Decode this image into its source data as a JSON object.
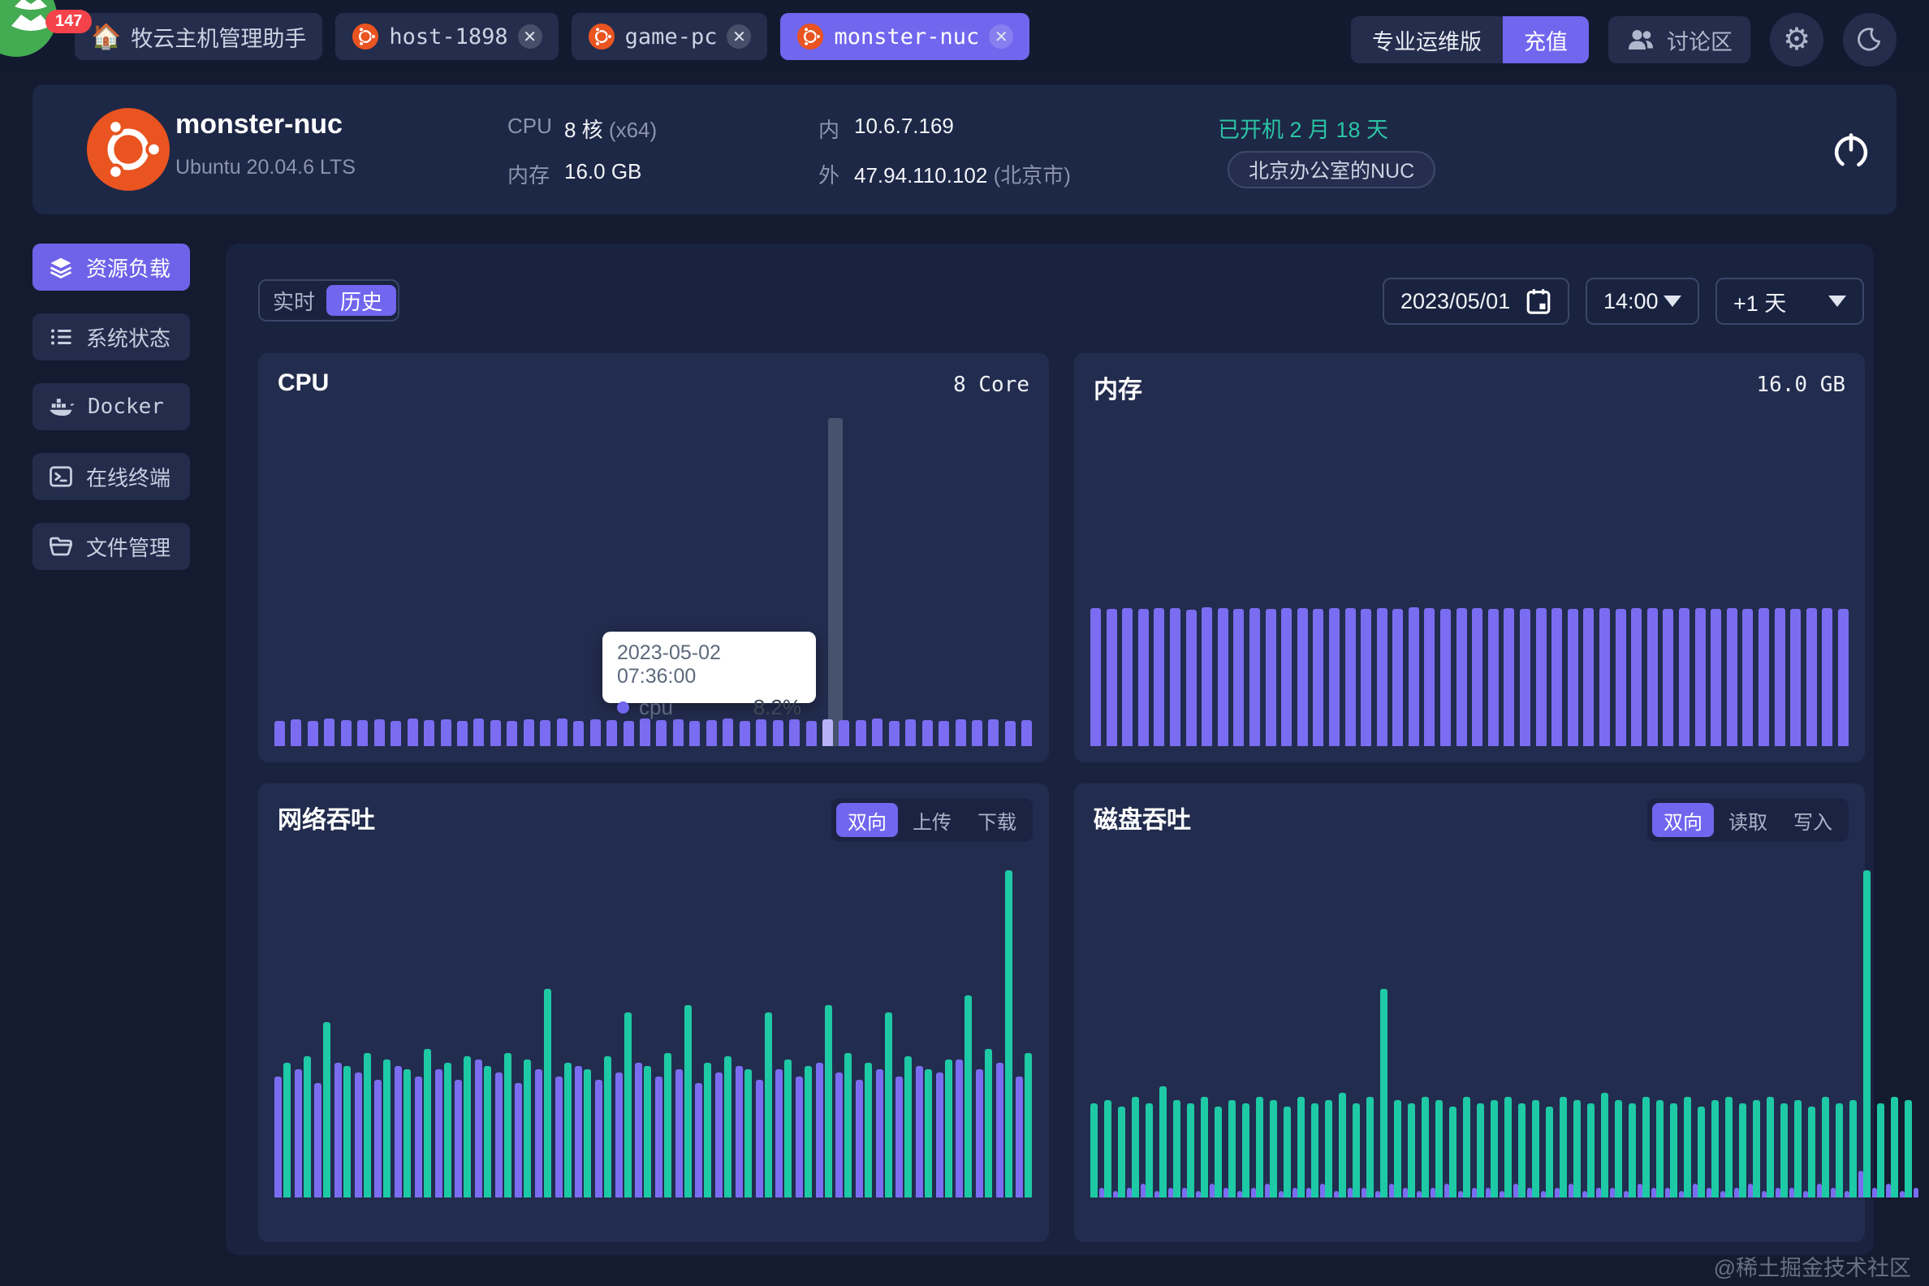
{
  "topbar": {
    "logo_badge": "147",
    "tabs": [
      {
        "label": "牧云主机管理助手",
        "icon": "home",
        "active": false,
        "closable": false
      },
      {
        "label": "host-1898",
        "icon": "ubuntu",
        "active": false,
        "closable": true
      },
      {
        "label": "game-pc",
        "icon": "ubuntu",
        "active": false,
        "closable": true
      },
      {
        "label": "monster-nuc",
        "icon": "ubuntu",
        "active": true,
        "closable": true
      }
    ],
    "pro_label": "专业运维版",
    "recharge_label": "充值",
    "forum_label": "讨论区"
  },
  "host": {
    "name": "monster-nuc",
    "os": "Ubuntu 20.04.6 LTS",
    "cpu_label": "CPU",
    "cpu_value": "8 核",
    "cpu_arch": "(x64)",
    "mem_label": "内存",
    "mem_value": "16.0 GB",
    "lan_label": "内",
    "lan_ip": "10.6.7.169",
    "wan_label": "外",
    "wan_ip": "47.94.110.102",
    "wan_loc": "(北京市)",
    "uptime": "已开机 2 月 18 天",
    "note": "北京办公室的NUC"
  },
  "sidebar": {
    "items": [
      {
        "label": "资源负载",
        "icon": "layers-icon",
        "active": true
      },
      {
        "label": "系统状态",
        "icon": "list-icon",
        "active": false
      },
      {
        "label": "Docker",
        "icon": "docker-icon",
        "active": false
      },
      {
        "label": "在线终端",
        "icon": "terminal-icon",
        "active": false
      },
      {
        "label": "文件管理",
        "icon": "folder-icon",
        "active": false
      }
    ]
  },
  "toolbar": {
    "mode_realtime": "实时",
    "mode_history": "历史",
    "date": "2023/05/01",
    "time": "14:00",
    "span": "+1 天"
  },
  "watermark": "@稀土掘金技术社区",
  "colors": {
    "accent_purple": "#7166ee",
    "bar_purple": "#7b6df1",
    "bar_green": "#1ec9a6",
    "uptime_teal": "#2bc5a4",
    "hover_bar": "#b9b1f7",
    "hover_band": "#47526f"
  },
  "chart_data": [
    {
      "id": "cpu",
      "type": "bar",
      "title": "CPU",
      "unit_label": "8 Core",
      "ylim": [
        0,
        100
      ],
      "bar_color": "#7b6df1",
      "hover_index": 33,
      "tooltip": {
        "timestamp": "2023-05-02 07:36:00",
        "series_label": "cpu",
        "value_label": "8.2%"
      },
      "values": [
        7.8,
        8.1,
        7.6,
        8.3,
        7.9,
        8.0,
        8.2,
        7.7,
        8.4,
        7.9,
        8.1,
        7.8,
        8.3,
        8.0,
        7.6,
        8.2,
        7.9,
        8.4,
        7.8,
        8.1,
        8.0,
        7.7,
        8.3,
        7.9,
        8.2,
        7.8,
        8.0,
        8.3,
        7.7,
        8.1,
        7.9,
        8.2,
        7.8,
        8.2,
        8.0,
        7.9,
        8.3,
        7.8,
        8.1,
        8.0,
        7.7,
        8.2,
        7.9,
        8.1,
        7.8,
        8.0
      ]
    },
    {
      "id": "memory",
      "type": "bar",
      "title": "内存",
      "unit_label": "16.0 GB",
      "ylim": [
        0,
        100
      ],
      "bar_color": "#7b6df1",
      "values": [
        42,
        41.8,
        42.2,
        41.9,
        42.1,
        42,
        41.7,
        42.3,
        42,
        41.9,
        42.2,
        41.8,
        42,
        42.1,
        41.9,
        42.2,
        42,
        41.8,
        42.1,
        41.9,
        42.3,
        42,
        41.8,
        42.1,
        42,
        41.9,
        42.2,
        41.8,
        42,
        42.1,
        41.9,
        42,
        42.2,
        41.8,
        42.1,
        42,
        41.9,
        42.2,
        42,
        41.8,
        42.1,
        41.9,
        42,
        42.2,
        41.8,
        42,
        42.1,
        41.9
      ]
    },
    {
      "id": "network",
      "type": "bar",
      "title": "网络吞吐",
      "tabs": [
        "双向",
        "上传",
        "下载"
      ],
      "active_tab": "双向",
      "ylim": [
        0,
        100
      ],
      "series": [
        {
          "name": "上传",
          "color": "#7b6df1",
          "values": [
            36,
            38,
            34,
            40,
            37,
            35,
            39,
            36,
            38,
            35,
            41,
            37,
            34,
            38,
            36,
            39,
            35,
            37,
            40,
            36,
            38,
            34,
            37,
            39,
            35,
            38,
            36,
            40,
            37,
            35,
            38,
            36,
            39,
            37,
            41,
            38,
            40,
            36
          ]
        },
        {
          "name": "下载",
          "color": "#1ec9a6",
          "values": [
            40,
            42,
            52,
            39,
            43,
            41,
            38,
            44,
            40,
            42,
            39,
            43,
            41,
            62,
            40,
            38,
            42,
            55,
            39,
            43,
            57,
            40,
            42,
            38,
            55,
            41,
            39,
            57,
            43,
            40,
            55,
            42,
            38,
            41,
            60,
            44,
            97,
            43
          ]
        }
      ]
    },
    {
      "id": "disk",
      "type": "bar",
      "title": "磁盘吞吐",
      "tabs": [
        "双向",
        "读取",
        "写入"
      ],
      "active_tab": "双向",
      "ylim": [
        0,
        100
      ],
      "series": [
        {
          "name": "读取",
          "color": "#1ec9a6",
          "values": [
            28,
            29,
            27,
            30,
            28,
            33,
            29,
            28,
            30,
            27,
            29,
            28,
            30,
            29,
            27,
            30,
            28,
            29,
            31,
            28,
            30,
            62,
            29,
            28,
            30,
            29,
            27,
            30,
            28,
            29,
            30,
            28,
            29,
            27,
            30,
            29,
            28,
            31,
            29,
            28,
            30,
            29,
            28,
            30,
            27,
            29,
            30,
            28,
            29,
            30,
            28,
            29,
            27,
            30,
            28,
            29,
            97,
            28,
            30,
            29
          ]
        },
        {
          "name": "写入",
          "color": "#7b6df1",
          "values": [
            3,
            2,
            3,
            4,
            2,
            3,
            3,
            2,
            4,
            3,
            2,
            3,
            4,
            2,
            3,
            3,
            4,
            2,
            3,
            3,
            2,
            4,
            3,
            2,
            3,
            4,
            2,
            3,
            3,
            2,
            4,
            3,
            2,
            3,
            4,
            2,
            3,
            3,
            2,
            4,
            3,
            3,
            2,
            4,
            3,
            2,
            3,
            4,
            2,
            3,
            3,
            2,
            4,
            3,
            2,
            8,
            3,
            4,
            2,
            3
          ]
        }
      ]
    }
  ]
}
